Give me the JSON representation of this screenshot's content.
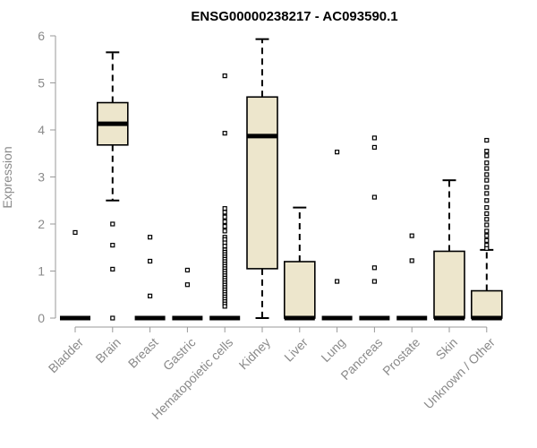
{
  "chart_data": {
    "type": "boxplot",
    "title": "ENSG00000238217 - AC093590.1",
    "ylabel": "Expression",
    "xlabel": "",
    "ylim": [
      0,
      6
    ],
    "yticks": [
      0,
      1,
      2,
      3,
      4,
      5,
      6
    ],
    "box_fill": "#ede6cc",
    "categories": [
      "Bladder",
      "Brain",
      "Breast",
      "Gastric",
      "Hematopoietic cells",
      "Kidney",
      "Liver",
      "Lung",
      "Pancreas",
      "Prostate",
      "Skin",
      "Unknown / Other"
    ],
    "boxes": [
      {
        "name": "Bladder",
        "min": 0,
        "q1": 0,
        "median": 0,
        "q3": 0,
        "max": 0,
        "outliers": [
          1.82
        ]
      },
      {
        "name": "Brain",
        "min": 2.5,
        "q1": 3.68,
        "median": 4.13,
        "q3": 4.58,
        "max": 5.65,
        "outliers": [
          2.0,
          1.55,
          1.04,
          0.0
        ]
      },
      {
        "name": "Breast",
        "min": 0,
        "q1": 0,
        "median": 0,
        "q3": 0,
        "max": 0,
        "outliers": [
          1.72,
          1.21,
          0.47
        ]
      },
      {
        "name": "Gastric",
        "min": 0,
        "q1": 0,
        "median": 0,
        "q3": 0,
        "max": 0,
        "outliers": [
          1.02,
          0.71
        ]
      },
      {
        "name": "Hematopoietic cells",
        "min": 0,
        "q1": 0,
        "median": 0,
        "q3": 0,
        "max": 0,
        "outliers": [
          5.15,
          3.93,
          2.33,
          2.25,
          2.15,
          2.05,
          1.95,
          1.85,
          1.72,
          1.67,
          1.6,
          1.53,
          1.45,
          1.4,
          1.35,
          1.3,
          1.25,
          1.2,
          1.15,
          1.1,
          1.05,
          1.0,
          0.95,
          0.9,
          0.85,
          0.8,
          0.75,
          0.7,
          0.65,
          0.6,
          0.55,
          0.5,
          0.45,
          0.4,
          0.35,
          0.3,
          0.25
        ]
      },
      {
        "name": "Kidney",
        "min": 0,
        "q1": 1.05,
        "median": 3.87,
        "q3": 4.7,
        "max": 5.93,
        "outliers": []
      },
      {
        "name": "Liver",
        "min": 0,
        "q1": 0,
        "median": 0,
        "q3": 1.2,
        "max": 2.35,
        "outliers": []
      },
      {
        "name": "Lung",
        "min": 0,
        "q1": 0,
        "median": 0,
        "q3": 0,
        "max": 0,
        "outliers": [
          3.53,
          0.78
        ]
      },
      {
        "name": "Pancreas",
        "min": 0,
        "q1": 0,
        "median": 0,
        "q3": 0,
        "max": 0,
        "outliers": [
          3.83,
          3.63,
          2.57,
          1.07,
          0.78
        ]
      },
      {
        "name": "Prostate",
        "min": 0,
        "q1": 0,
        "median": 0,
        "q3": 0,
        "max": 0,
        "outliers": [
          1.75,
          1.22
        ]
      },
      {
        "name": "Skin",
        "min": 0,
        "q1": 0,
        "median": 0,
        "q3": 1.42,
        "max": 2.93,
        "outliers": []
      },
      {
        "name": "Unknown / Other",
        "min": 0,
        "q1": 0,
        "median": 0,
        "q3": 0.58,
        "max": 1.45,
        "outliers": [
          3.78,
          3.55,
          3.45,
          3.3,
          3.18,
          3.05,
          2.93,
          2.78,
          2.65,
          2.5,
          2.35,
          2.22,
          2.1,
          1.98,
          1.85,
          1.75,
          1.65,
          1.55,
          1.48
        ]
      }
    ]
  }
}
